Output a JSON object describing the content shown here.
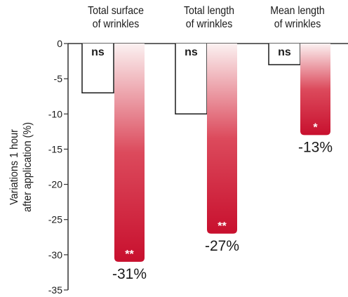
{
  "chart_data": {
    "type": "bar",
    "categories": [
      {
        "line1": "Total surface",
        "line2": "of wrinkles"
      },
      {
        "line1": "Total length",
        "line2": "of wrinkles"
      },
      {
        "line1": "Mean length",
        "line2": "of wrinkles"
      }
    ],
    "ylabel": {
      "line1": "Variations 1 hour",
      "line2": "after application (%)"
    },
    "ylim": [
      -35,
      0
    ],
    "yticks": [
      0,
      -5,
      -10,
      -15,
      -20,
      -25,
      -30,
      -35
    ],
    "series": [
      {
        "style": "outline",
        "values": [
          -7,
          -10,
          -3
        ],
        "significance": [
          "ns",
          "ns",
          "ns"
        ]
      },
      {
        "style": "gradient",
        "values": [
          -31,
          -27,
          -13
        ],
        "significance": [
          "**",
          "**",
          "*"
        ],
        "value_labels": [
          "-31%",
          "-27%",
          "-13%"
        ]
      }
    ],
    "colors": {
      "bar_top": "#fbf1f1",
      "bar_bottom": "#c8102e",
      "outline": "#1a1a1a",
      "axis": "#333333"
    }
  }
}
